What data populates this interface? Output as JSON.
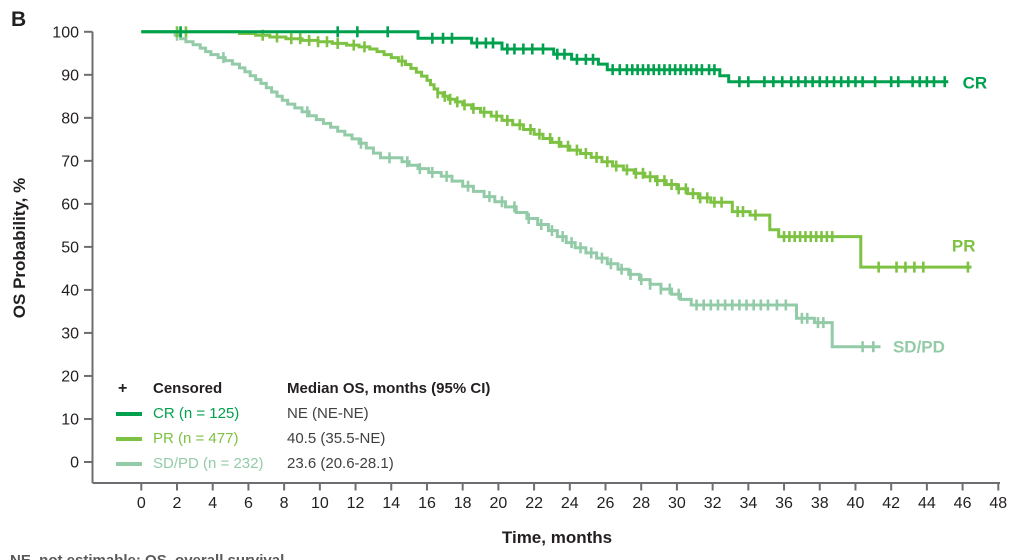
{
  "panel_label": "B",
  "colors": {
    "cr": "#00A14E",
    "pr": "#7DC242",
    "sdpd": "#93CBA8",
    "axis": "#6D6E71",
    "text": "#231F20",
    "value_text": "#414042"
  },
  "axes": {
    "x_label": "Time, months",
    "y_label": "OS Probability, %",
    "x_ticks": [
      0,
      2,
      4,
      6,
      8,
      10,
      12,
      14,
      16,
      18,
      20,
      22,
      24,
      26,
      28,
      30,
      32,
      34,
      36,
      38,
      40,
      42,
      44,
      46,
      48
    ],
    "y_ticks": [
      0,
      10,
      20,
      30,
      40,
      50,
      60,
      70,
      80,
      90,
      100
    ]
  },
  "legend": {
    "censored_symbol": "+",
    "censored_label": "Censored",
    "median_header": "Median OS, months (95% CI)",
    "rows": [
      {
        "series": "cr",
        "label": "CR (n = 125)",
        "value": "NE (NE-NE)"
      },
      {
        "series": "pr",
        "label": "PR (n = 477)",
        "value": "40.5 (35.5-NE)"
      },
      {
        "series": "sdpd",
        "label": "SD/PD (n = 232)",
        "value": "23.6 (20.6-28.1)"
      }
    ]
  },
  "footnote_clipped_text": "NE, not estimable; OS, overall survival.",
  "chart_data": {
    "type": "line",
    "subtype": "kaplan-meier-step",
    "xlabel": "Time, months",
    "ylabel": "OS Probability, %",
    "xlim": [
      0,
      48
    ],
    "ylim": [
      0,
      100
    ],
    "grid": false,
    "legend_position": "lower-left",
    "series": [
      {
        "id": "cr",
        "name": "CR",
        "n": 125,
        "median_os": "NE (NE-NE)",
        "end_label": "CR",
        "label_at": [
          46.0,
          88.2
        ],
        "end_t": 45.2,
        "points": [
          [
            0,
            100
          ],
          [
            15.5,
            98.5
          ],
          [
            18.5,
            97.4
          ],
          [
            20.2,
            96.0
          ],
          [
            23.1,
            94.8
          ],
          [
            24.1,
            93.6
          ],
          [
            25.6,
            92.5
          ],
          [
            26.1,
            91.2
          ],
          [
            32.4,
            89.8
          ],
          [
            32.9,
            88.4
          ]
        ],
        "censors": [
          2.2,
          11.0,
          12.1,
          13.8,
          16.3,
          16.9,
          17.4,
          18.8,
          19.3,
          19.7,
          20.5,
          20.9,
          21.4,
          21.9,
          22.5,
          23.3,
          23.7,
          24.4,
          24.9,
          25.3,
          26.4,
          26.8,
          27.2,
          27.5,
          27.8,
          28.1,
          28.4,
          28.7,
          29.0,
          29.3,
          29.6,
          29.9,
          30.2,
          30.5,
          30.8,
          31.1,
          31.4,
          31.8,
          32.1,
          33.5,
          34.0,
          34.9,
          35.4,
          35.9,
          36.4,
          36.8,
          37.2,
          37.6,
          38.0,
          38.4,
          38.8,
          39.2,
          39.6,
          40.0,
          40.4,
          41.1,
          42.0,
          42.4,
          43.2,
          43.6,
          44.0,
          44.4,
          45.0
        ]
      },
      {
        "id": "pr",
        "name": "PR",
        "n": 477,
        "median_os": "40.5 (35.5-NE)",
        "end_label": "PR",
        "label_at": [
          45.4,
          50.3
        ],
        "end_t": 46.5,
        "points": [
          [
            0,
            100
          ],
          [
            5.5,
            99.6
          ],
          [
            6.4,
            99.2
          ],
          [
            7.2,
            98.8
          ],
          [
            8.1,
            98.4
          ],
          [
            9.0,
            98.0
          ],
          [
            9.9,
            97.7
          ],
          [
            10.7,
            97.3
          ],
          [
            11.5,
            96.9
          ],
          [
            12.2,
            96.5
          ],
          [
            12.8,
            96.0
          ],
          [
            13.2,
            95.4
          ],
          [
            13.6,
            94.7
          ],
          [
            14.0,
            94.0
          ],
          [
            14.4,
            93.2
          ],
          [
            14.8,
            92.4
          ],
          [
            15.1,
            91.5
          ],
          [
            15.4,
            90.6
          ],
          [
            15.7,
            89.7
          ],
          [
            16.0,
            88.7
          ],
          [
            16.2,
            87.7
          ],
          [
            16.4,
            86.7
          ],
          [
            16.6,
            85.8
          ],
          [
            16.9,
            85.0
          ],
          [
            17.2,
            84.3
          ],
          [
            17.6,
            83.7
          ],
          [
            18.0,
            83.0
          ],
          [
            18.5,
            82.2
          ],
          [
            19.0,
            81.3
          ],
          [
            19.6,
            80.4
          ],
          [
            20.2,
            79.4
          ],
          [
            20.8,
            78.4
          ],
          [
            21.4,
            77.3
          ],
          [
            22.0,
            76.2
          ],
          [
            22.5,
            75.2
          ],
          [
            23.0,
            74.3
          ],
          [
            23.5,
            73.4
          ],
          [
            24.0,
            72.5
          ],
          [
            24.6,
            71.7
          ],
          [
            25.2,
            70.8
          ],
          [
            25.8,
            69.8
          ],
          [
            26.4,
            68.8
          ],
          [
            27.0,
            67.9
          ],
          [
            27.6,
            67.1
          ],
          [
            28.2,
            66.3
          ],
          [
            28.8,
            65.4
          ],
          [
            29.4,
            64.5
          ],
          [
            30.0,
            63.5
          ],
          [
            30.6,
            62.4
          ],
          [
            31.2,
            61.4
          ],
          [
            31.9,
            60.4
          ],
          [
            33.1,
            58.2
          ],
          [
            34.1,
            57.4
          ],
          [
            35.2,
            54.0
          ],
          [
            35.7,
            52.4
          ],
          [
            40.3,
            45.3
          ]
        ],
        "censors": [
          2.0,
          2.5,
          6.8,
          7.6,
          8.4,
          8.9,
          9.4,
          9.9,
          10.4,
          11.0,
          11.9,
          12.5,
          14.6,
          16.6,
          17.0,
          17.3,
          17.7,
          18.1,
          18.6,
          19.2,
          19.9,
          20.5,
          21.2,
          21.8,
          22.3,
          22.9,
          23.4,
          23.9,
          24.4,
          24.9,
          25.5,
          26.1,
          26.6,
          27.2,
          27.7,
          28.1,
          28.5,
          28.9,
          29.3,
          29.7,
          30.1,
          30.5,
          30.9,
          31.3,
          31.7,
          32.1,
          32.5,
          33.4,
          33.7,
          34.4,
          36.0,
          36.3,
          36.6,
          36.9,
          37.2,
          37.5,
          37.8,
          38.1,
          38.4,
          38.7,
          41.3,
          42.3,
          42.8,
          43.3,
          43.8,
          46.3
        ]
      },
      {
        "id": "sdpd",
        "name": "SD/PD",
        "n": 232,
        "median_os": "23.6 (20.6-28.1)",
        "end_label": "SD/PD",
        "label_at": [
          42.1,
          26.8
        ],
        "end_t": 41.4,
        "points": [
          [
            0,
            100
          ],
          [
            1.9,
            99.2
          ],
          [
            2.2,
            98.4
          ],
          [
            2.5,
            97.7
          ],
          [
            2.9,
            97.0
          ],
          [
            3.3,
            96.2
          ],
          [
            3.6,
            95.4
          ],
          [
            3.9,
            94.7
          ],
          [
            4.3,
            94.0
          ],
          [
            4.7,
            93.3
          ],
          [
            5.1,
            92.5
          ],
          [
            5.5,
            91.6
          ],
          [
            5.8,
            90.7
          ],
          [
            6.1,
            89.8
          ],
          [
            6.4,
            88.9
          ],
          [
            6.7,
            88.0
          ],
          [
            7.0,
            87.0
          ],
          [
            7.3,
            86.0
          ],
          [
            7.6,
            85.0
          ],
          [
            7.9,
            84.1
          ],
          [
            8.2,
            83.2
          ],
          [
            8.6,
            82.3
          ],
          [
            9.0,
            81.4
          ],
          [
            9.4,
            80.5
          ],
          [
            9.8,
            79.6
          ],
          [
            10.2,
            78.7
          ],
          [
            10.6,
            77.8
          ],
          [
            11.0,
            76.9
          ],
          [
            11.4,
            76.0
          ],
          [
            11.8,
            75.1
          ],
          [
            12.2,
            74.1
          ],
          [
            12.6,
            73.0
          ],
          [
            13.0,
            71.8
          ],
          [
            13.4,
            70.7
          ],
          [
            14.6,
            69.8
          ],
          [
            15.0,
            69.0
          ],
          [
            15.5,
            68.2
          ],
          [
            16.1,
            67.3
          ],
          [
            16.8,
            66.4
          ],
          [
            17.4,
            65.3
          ],
          [
            18.0,
            64.1
          ],
          [
            18.6,
            62.9
          ],
          [
            19.2,
            61.7
          ],
          [
            19.8,
            60.5
          ],
          [
            20.4,
            59.3
          ],
          [
            21.0,
            58.0
          ],
          [
            21.6,
            56.6
          ],
          [
            22.2,
            55.2
          ],
          [
            22.8,
            53.8
          ],
          [
            23.3,
            52.4
          ],
          [
            23.8,
            51.0
          ],
          [
            24.3,
            49.8
          ],
          [
            24.9,
            48.6
          ],
          [
            25.5,
            47.4
          ],
          [
            26.1,
            46.1
          ],
          [
            26.7,
            44.8
          ],
          [
            27.3,
            43.6
          ],
          [
            27.9,
            42.4
          ],
          [
            28.5,
            41.3
          ],
          [
            29.1,
            40.2
          ],
          [
            29.7,
            39.0
          ],
          [
            30.2,
            37.8
          ],
          [
            30.8,
            36.5
          ],
          [
            36.7,
            33.4
          ],
          [
            37.7,
            32.4
          ],
          [
            38.7,
            26.8
          ]
        ],
        "censors": [
          2.0,
          4.6,
          9.3,
          12.3,
          13.9,
          14.9,
          15.6,
          16.3,
          17.1,
          18.3,
          19.5,
          20.2,
          20.9,
          21.7,
          22.4,
          23.0,
          23.6,
          24.1,
          24.6,
          25.2,
          25.8,
          26.3,
          26.9,
          27.4,
          28.0,
          28.5,
          29.1,
          29.6,
          30.1,
          31.1,
          31.5,
          31.9,
          32.3,
          32.7,
          33.1,
          33.5,
          33.9,
          34.3,
          34.7,
          35.1,
          35.6,
          36.1,
          37.0,
          37.3,
          37.9,
          38.2,
          40.4,
          41.0
        ]
      }
    ]
  }
}
